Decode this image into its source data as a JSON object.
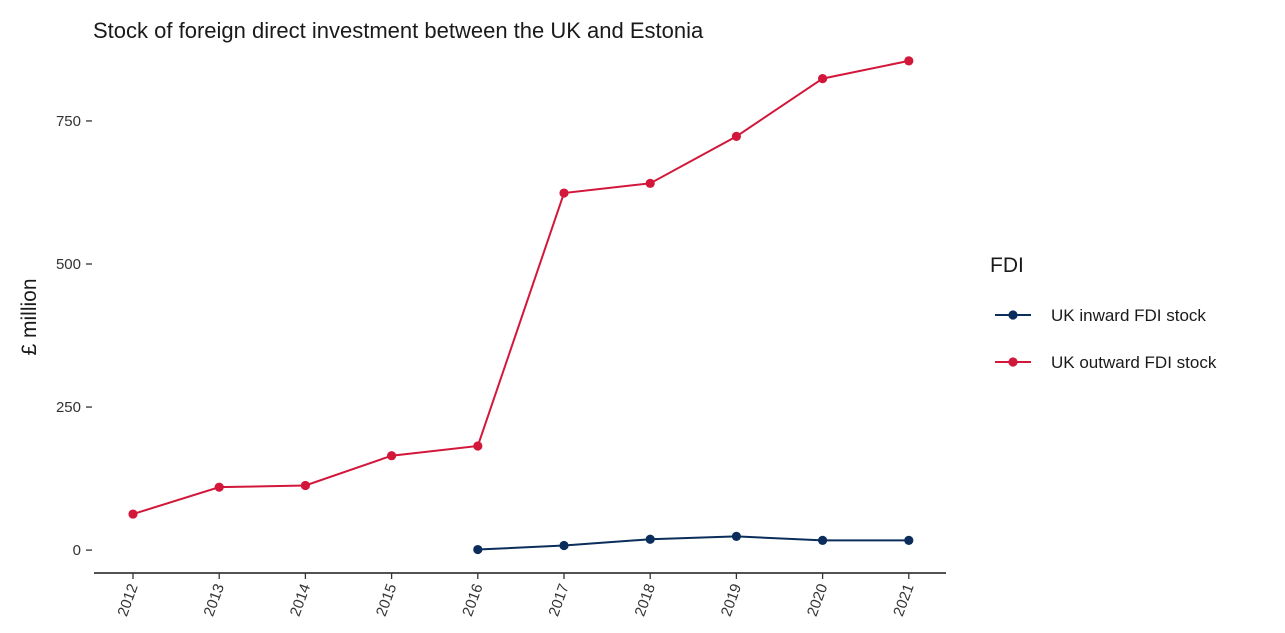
{
  "chart_data": {
    "type": "line",
    "title": "Stock of foreign direct investment between the UK and Estonia",
    "xlabel": "",
    "ylabel": "£ million",
    "x": [
      "2012",
      "2013",
      "2014",
      "2015",
      "2016",
      "2017",
      "2018",
      "2019",
      "2020",
      "2021"
    ],
    "ylim": [
      -40,
      860
    ],
    "yticks": [
      0,
      250,
      500,
      750
    ],
    "grid": false,
    "legend": {
      "title": "FDI",
      "placement": "right"
    },
    "series": [
      {
        "name": "UK inward FDI stock",
        "color": "#0b2d5b",
        "values": [
          null,
          null,
          null,
          null,
          1,
          8,
          19,
          24,
          17,
          17
        ]
      },
      {
        "name": "UK outward FDI stock",
        "color": "#d2173a",
        "values": [
          63,
          110,
          113,
          165,
          182,
          624,
          641,
          723,
          824,
          855
        ]
      }
    ]
  }
}
